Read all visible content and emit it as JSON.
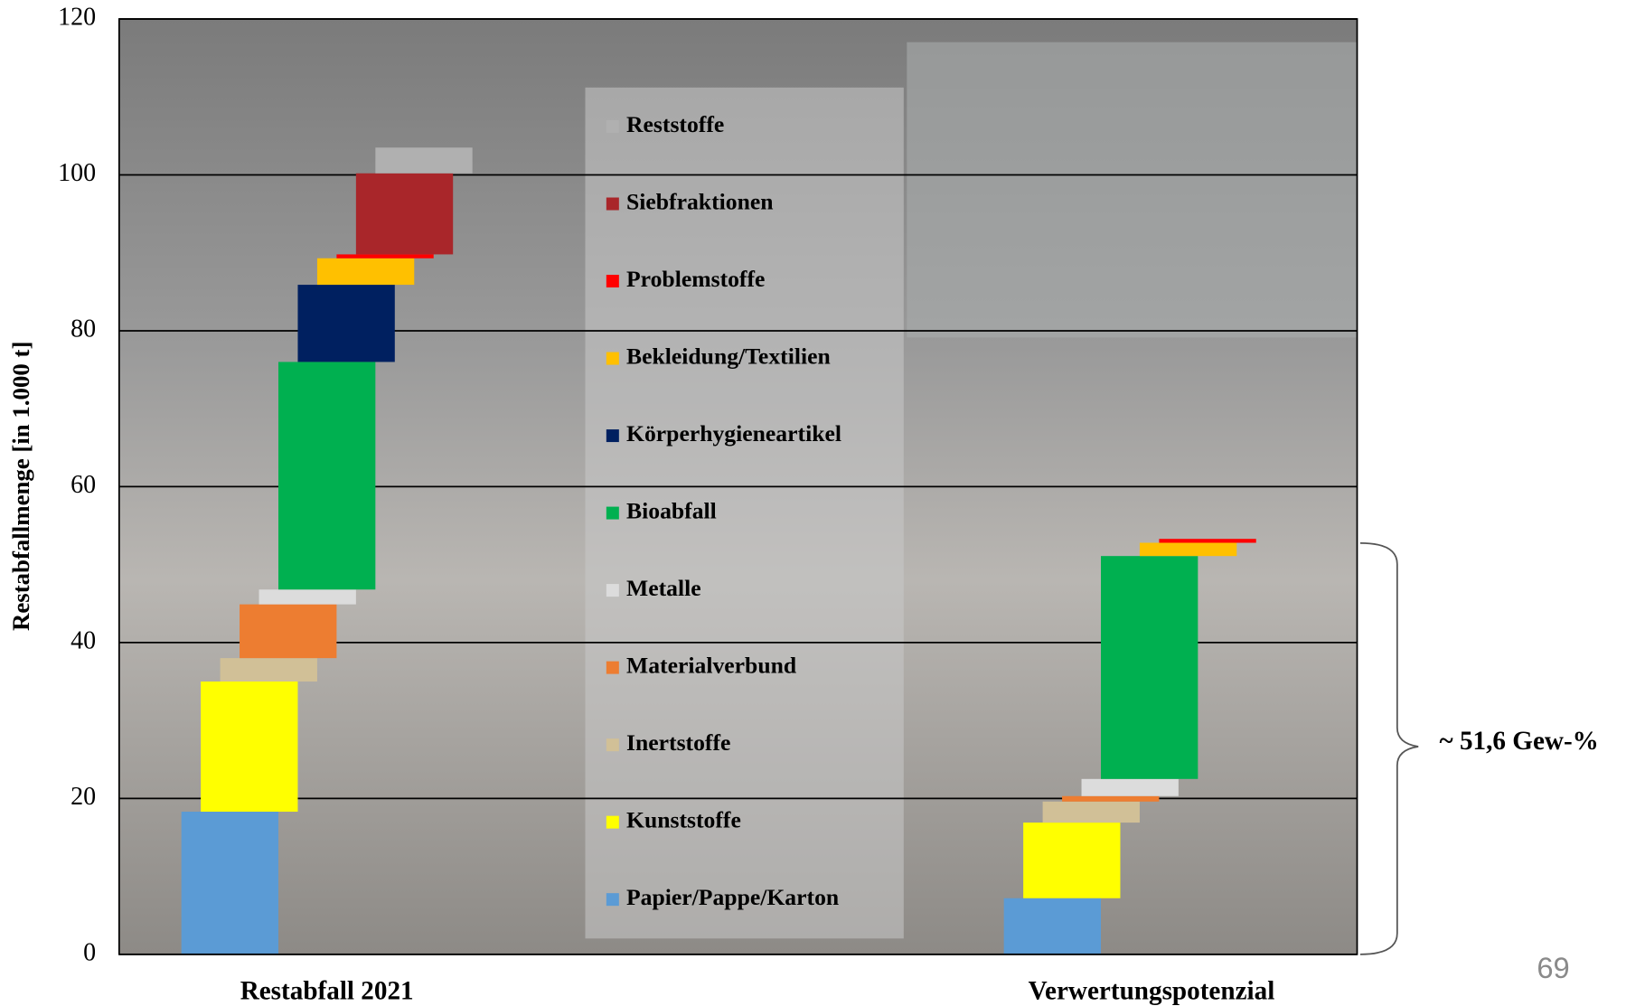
{
  "chart_data": {
    "type": "waterfall",
    "ylabel": "Restabfallmenge [in 1.000 t]",
    "categories": [
      "Restabfall 2021",
      "Verwertungspotenzial"
    ],
    "series": [
      {
        "name": "Papier/Pappe/Karton",
        "color": "#5b9bd5",
        "values": [
          18.3,
          7.2
        ]
      },
      {
        "name": "Kunststoffe",
        "color": "#ffff00",
        "values": [
          16.7,
          9.7
        ]
      },
      {
        "name": "Inertstoffe",
        "color": "#d1c097",
        "values": [
          3.0,
          2.7
        ]
      },
      {
        "name": "Materialverbund",
        "color": "#ed7d31",
        "values": [
          6.9,
          0.7
        ]
      },
      {
        "name": "Metalle",
        "color": "#dcdcdc",
        "values": [
          1.9,
          2.2
        ]
      },
      {
        "name": "Bioabfall",
        "color": "#00b050",
        "values": [
          29.2,
          28.6
        ]
      },
      {
        "name": "Körperhygieneartikel",
        "color": "#002060",
        "values": [
          9.9,
          0
        ]
      },
      {
        "name": "Bekleidung/Textilien",
        "color": "#ffc000",
        "values": [
          3.4,
          1.7
        ]
      },
      {
        "name": "Problemstoffe",
        "color": "#ff0000",
        "values": [
          0.5,
          0.5
        ]
      },
      {
        "name": "Siebfraktionen",
        "color": "#a9262a",
        "values": [
          10.4,
          0
        ]
      },
      {
        "name": "Reststoffe",
        "color": "#b0b0b0",
        "values": [
          3.3,
          0
        ]
      }
    ],
    "ylim": [
      0,
      120
    ],
    "yticks": [
      0,
      20,
      40,
      60,
      80,
      100,
      120
    ],
    "grid": true,
    "annotation": "~ 51,6 Gew-%",
    "page_number": "69"
  }
}
